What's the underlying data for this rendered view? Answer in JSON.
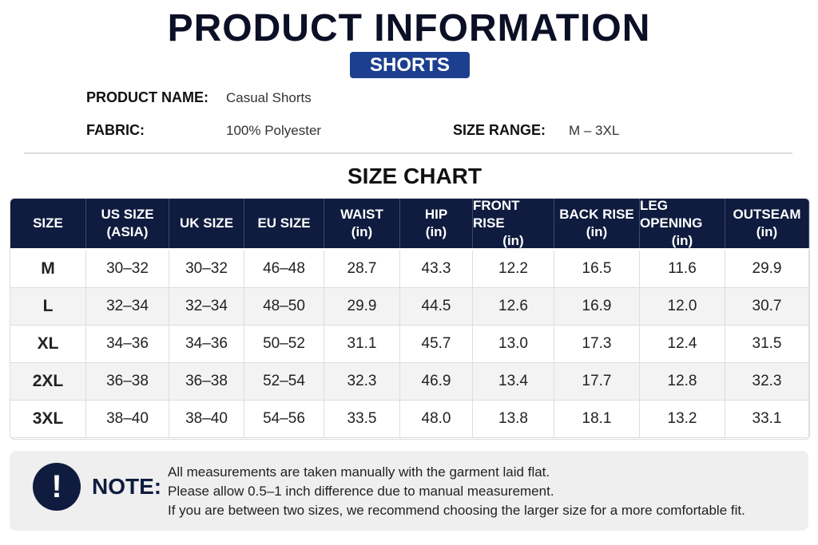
{
  "header": {
    "title": "PRODUCT INFORMATION",
    "badge": "SHORTS"
  },
  "info": {
    "product_name_label": "PRODUCT NAME:",
    "product_name": "Casual Shorts",
    "fabric_label": "FABRIC:",
    "fabric": "100% Polyester",
    "size_range_label": "SIZE RANGE:",
    "size_range": "M – 3XL"
  },
  "table": {
    "title": "SIZE CHART",
    "columns": [
      [
        "SIZE"
      ],
      [
        "US SIZE",
        "(ASIA)"
      ],
      [
        "UK SIZE"
      ],
      [
        "EU SIZE"
      ],
      [
        "WAIST",
        "(in)"
      ],
      [
        "HIP",
        "(in)"
      ],
      [
        "FRONT RISE",
        "(in)"
      ],
      [
        "BACK RISE",
        "(in)"
      ],
      [
        "LEG OPENING",
        "(in)"
      ],
      [
        "OUTSEAM",
        "(in)"
      ]
    ],
    "rows": [
      [
        "M",
        "30–32",
        "30–32",
        "46–48",
        "28.7",
        "43.3",
        "12.2",
        "16.5",
        "11.6",
        "29.9"
      ],
      [
        "L",
        "32–34",
        "32–34",
        "48–50",
        "29.9",
        "44.5",
        "12.6",
        "16.9",
        "12.0",
        "30.7"
      ],
      [
        "XL",
        "34–36",
        "34–36",
        "50–52",
        "31.1",
        "45.7",
        "13.0",
        "17.3",
        "12.4",
        "31.5"
      ],
      [
        "2XL",
        "36–38",
        "36–38",
        "52–54",
        "32.3",
        "46.9",
        "13.4",
        "17.7",
        "12.8",
        "32.3"
      ],
      [
        "3XL",
        "38–40",
        "38–40",
        "54–56",
        "33.5",
        "48.0",
        "13.8",
        "18.1",
        "13.2",
        "33.1"
      ]
    ]
  },
  "note": {
    "icon": "!",
    "label": "NOTE:",
    "lines": [
      "All measurements are taken manually with the garment laid flat.",
      "Please allow 0.5–1 inch difference due to manual measurement.",
      "If you are between two sizes, we recommend choosing the larger size for a more comfortable fit."
    ]
  }
}
